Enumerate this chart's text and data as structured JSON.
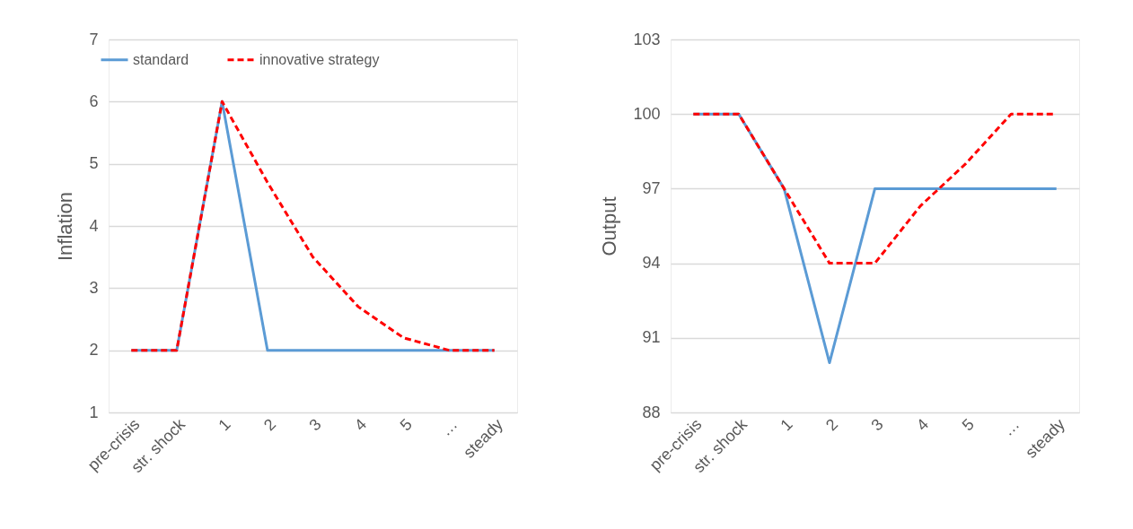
{
  "chart_data": [
    {
      "type": "line",
      "ylabel": "Inflation",
      "categories": [
        "pre-crisis",
        "str. shock",
        "1",
        "2",
        "3",
        "4",
        "5",
        "…",
        "steady"
      ],
      "ylim": [
        1,
        7
      ],
      "yticks": [
        1,
        2,
        3,
        4,
        5,
        6,
        7
      ],
      "grid": "y",
      "legend": "top",
      "series": [
        {
          "name": "standard",
          "color": "#5b9bd5",
          "line_style": "solid",
          "values": [
            2,
            2,
            6,
            2,
            2,
            2,
            2,
            2,
            2
          ]
        },
        {
          "name": "innovative strategy",
          "color": "#ff0000",
          "line_style": "dashed",
          "values": [
            2,
            2,
            6,
            4.7,
            3.5,
            2.7,
            2.2,
            2,
            2
          ]
        }
      ]
    },
    {
      "type": "line",
      "ylabel": "Output",
      "categories": [
        "pre-crisis",
        "str. shock",
        "1",
        "2",
        "3",
        "4",
        "5",
        "…",
        "steady"
      ],
      "ylim": [
        88,
        103
      ],
      "yticks": [
        88,
        91,
        94,
        97,
        100,
        103
      ],
      "grid": "y",
      "series": [
        {
          "color": "#5b9bd5",
          "line_style": "solid",
          "values": [
            100,
            100,
            97,
            90,
            97,
            97,
            97,
            97,
            97
          ]
        },
        {
          "color": "#ff0000",
          "line_style": "dashed",
          "values": [
            100,
            100,
            97,
            94,
            94,
            96.3,
            98,
            100,
            100
          ]
        }
      ]
    }
  ]
}
